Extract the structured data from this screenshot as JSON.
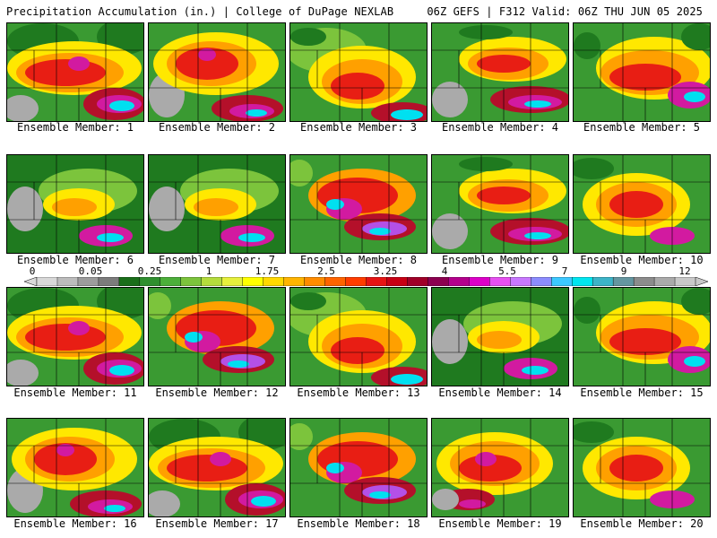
{
  "header": {
    "left": "Precipitation Accumulation (in.) | College of DuPage NEXLAB",
    "right": "06Z GEFS | F312 Valid: 06Z THU JUN 05 2025"
  },
  "member_label_prefix": "Ensemble Member:",
  "members": [
    "1",
    "2",
    "3",
    "4",
    "5",
    "6",
    "7",
    "8",
    "9",
    "10",
    "11",
    "12",
    "13",
    "14",
    "15",
    "16",
    "17",
    "18",
    "19",
    "20"
  ],
  "legend": {
    "labels": [
      "0",
      "0.05",
      "0.25",
      "1",
      "1.75",
      "2.5",
      "3.25",
      "4",
      "5.5",
      "7",
      "9",
      "12"
    ],
    "colors": [
      "#d8d8d8",
      "#bcbcbc",
      "#9c9c9c",
      "#7c7c7c",
      "#1a6e1a",
      "#2f8f2f",
      "#4caf3a",
      "#7cc43c",
      "#b4dc3c",
      "#e6f03c",
      "#ffff00",
      "#ffd800",
      "#ffb400",
      "#ff8c00",
      "#ff6400",
      "#ff3c00",
      "#e61414",
      "#c80014",
      "#a00028",
      "#8c0050",
      "#b4008c",
      "#dc00c8",
      "#e650f0",
      "#c878ff",
      "#8c8cff",
      "#3cc8ff",
      "#00e6f0",
      "#3cb4c8",
      "#6496a0",
      "#8c8c8c",
      "#aaaaaa",
      "#c8c8c8"
    ],
    "color_meaning": {
      "gray_dry": "#aaaaaa",
      "dark_green": "#1f7a1f",
      "green": "#3a9a32",
      "light_green": "#7cc43c",
      "yellow": "#ffe800",
      "orange": "#ffa000",
      "red": "#e81e14",
      "dark_red": "#b4102a",
      "magenta": "#d21aa0",
      "purple": "#b450e6",
      "cyan": "#00e0f0"
    }
  }
}
